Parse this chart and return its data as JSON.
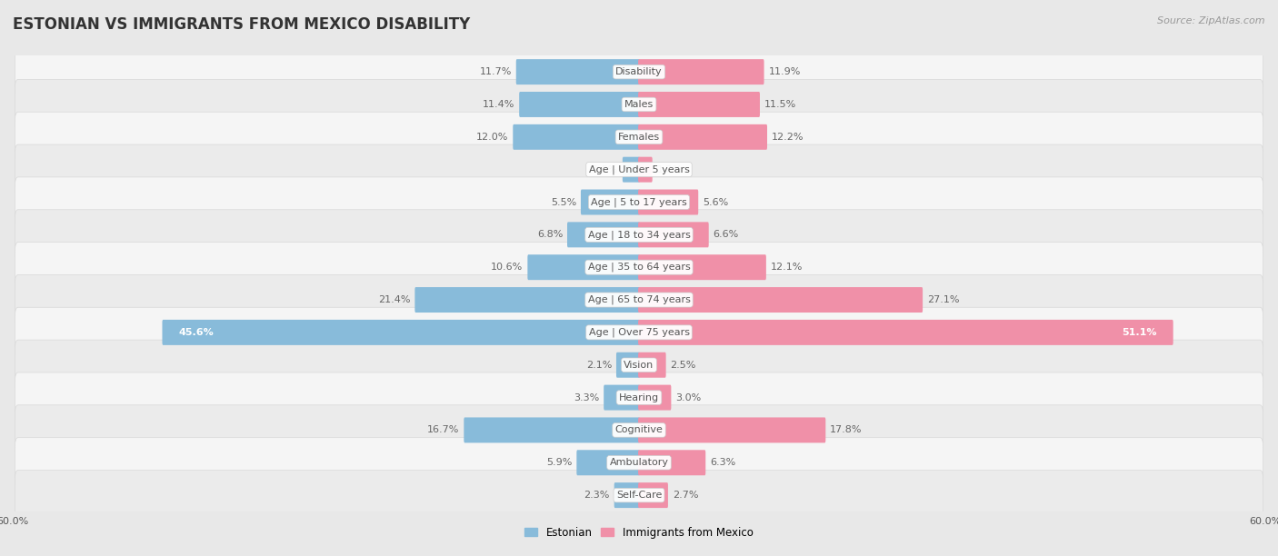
{
  "title": "ESTONIAN VS IMMIGRANTS FROM MEXICO DISABILITY",
  "source": "Source: ZipAtlas.com",
  "categories": [
    "Disability",
    "Males",
    "Females",
    "Age | Under 5 years",
    "Age | 5 to 17 years",
    "Age | 18 to 34 years",
    "Age | 35 to 64 years",
    "Age | 65 to 74 years",
    "Age | Over 75 years",
    "Vision",
    "Hearing",
    "Cognitive",
    "Ambulatory",
    "Self-Care"
  ],
  "estonian": [
    11.7,
    11.4,
    12.0,
    1.5,
    5.5,
    6.8,
    10.6,
    21.4,
    45.6,
    2.1,
    3.3,
    16.7,
    5.9,
    2.3
  ],
  "mexico": [
    11.9,
    11.5,
    12.2,
    1.2,
    5.6,
    6.6,
    12.1,
    27.1,
    51.1,
    2.5,
    3.0,
    17.8,
    6.3,
    2.7
  ],
  "estonian_color": "#88bbda",
  "mexico_color": "#f090a8",
  "estonian_label": "Estonian",
  "mexico_label": "Immigrants from Mexico",
  "x_max": 60.0,
  "bg_outer": "#e8e8e8",
  "bg_row_light": "#f0f0f0",
  "bg_row_dark": "#e2e2e2",
  "title_fontsize": 12,
  "label_fontsize": 8,
  "tick_fontsize": 8,
  "source_fontsize": 8
}
